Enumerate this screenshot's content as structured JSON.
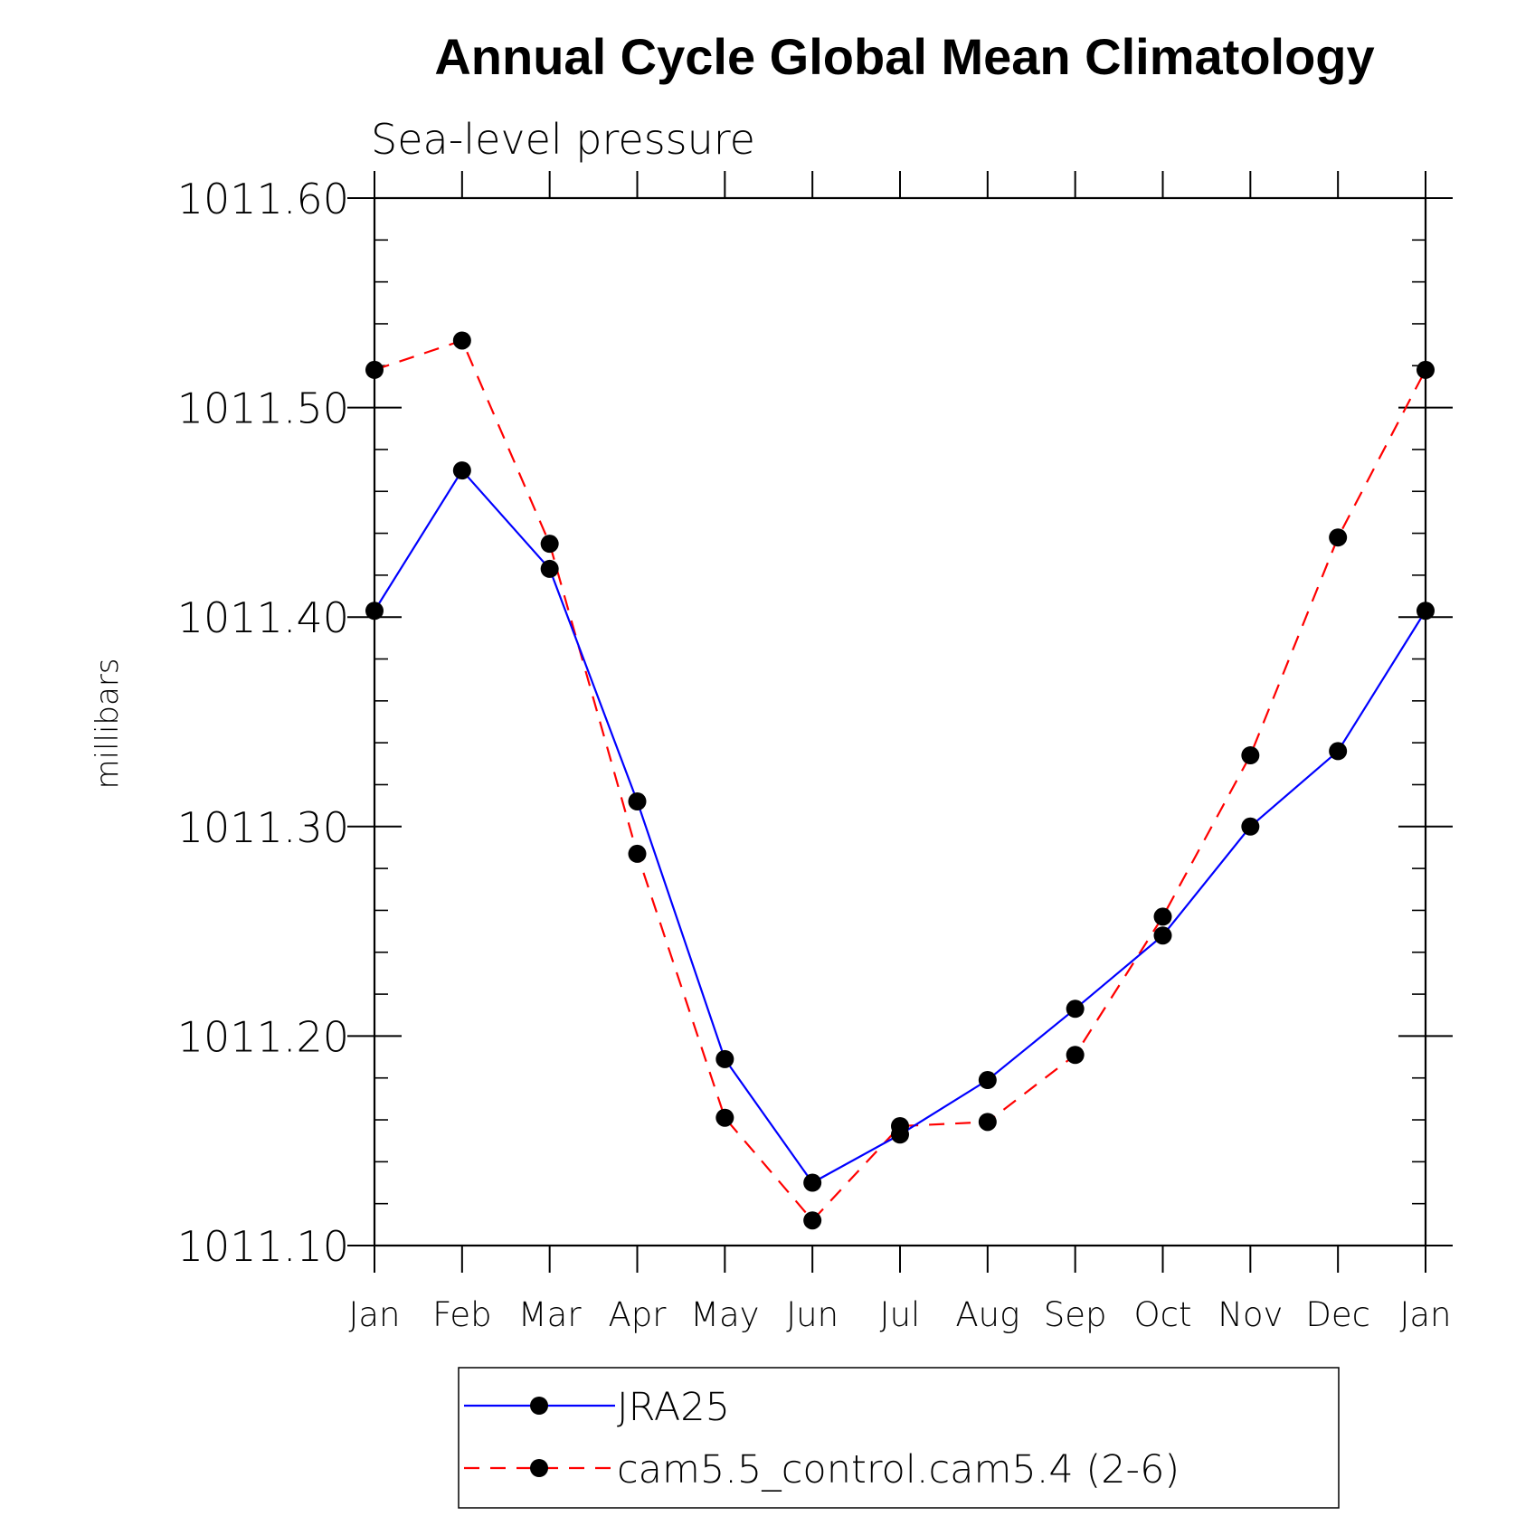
{
  "chart_data": {
    "type": "line",
    "title": "Annual Cycle Global Mean Climatology",
    "subtitle": "Sea-level pressure",
    "ylabel": "millibars",
    "xlabel": "",
    "categories": [
      "Jan",
      "Feb",
      "Mar",
      "Apr",
      "May",
      "Jun",
      "Jul",
      "Aug",
      "Sep",
      "Oct",
      "Nov",
      "Dec",
      "Jan"
    ],
    "ylim": [
      1011.1,
      1011.6
    ],
    "yticks": [
      "1011.10",
      "1011.20",
      "1011.30",
      "1011.40",
      "1011.50",
      "1011.60"
    ],
    "grid": false,
    "legend_position": "bottom",
    "series": [
      {
        "name": "JRA25",
        "color": "#0000ff",
        "style": "solid",
        "values": [
          1011.403,
          1011.47,
          1011.423,
          1011.312,
          1011.189,
          1011.13,
          1011.153,
          1011.179,
          1011.213,
          1011.248,
          1011.3,
          1011.336,
          1011.403
        ]
      },
      {
        "name": "cam5.5_control.cam5.4 (2-6)",
        "color": "#ff0000",
        "style": "dashed",
        "values": [
          1011.518,
          1011.532,
          1011.435,
          1011.287,
          1011.161,
          1011.112,
          1011.157,
          1011.159,
          1011.191,
          1011.257,
          1011.334,
          1011.438,
          1011.518
        ]
      }
    ]
  }
}
